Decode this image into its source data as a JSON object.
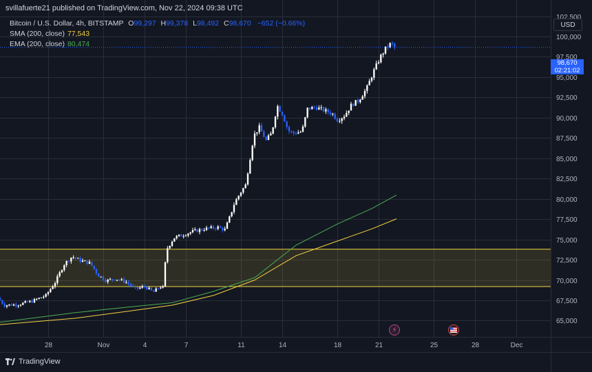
{
  "header": {
    "publisher_line": "svillafuerte21 published on TradingView.com, Nov 22, 2024 09:38 UTC"
  },
  "legend": {
    "symbol": "Bitcoin / U.S. Dollar, 4h, BITSTAMP",
    "open_label": "O",
    "open": "99,297",
    "high_label": "H",
    "high": "99,378",
    "low_label": "L",
    "low": "98,492",
    "close_label": "C",
    "close": "98,670",
    "change": "−652 (−0.66%)",
    "sma_label": "SMA (200, close)",
    "sma_value": "77,543",
    "ema_label": "EMA (200, close)",
    "ema_value": "80,474"
  },
  "currency": "USD",
  "price_tag": {
    "price": "98,670",
    "countdown": "02:21:02"
  },
  "footer": {
    "brand": "TradingView"
  },
  "colors": {
    "background": "#131722",
    "grid": "#2a2e39",
    "up": "#ffffff",
    "down": "#2962ff",
    "sma": "#f5d442",
    "ema": "#4caf50",
    "zone": "#f5d442",
    "axis_text": "#b2b5be"
  },
  "icons": {
    "marker_1": "lightning-icon",
    "marker_2": "us-flag-icon"
  },
  "chart_data": {
    "type": "candlestick",
    "y_range": [
      63000,
      104500
    ],
    "y_ticks": [
      65000,
      67500,
      70000,
      72500,
      75000,
      77500,
      80000,
      82500,
      85000,
      87500,
      90000,
      92500,
      95000,
      97500,
      100000,
      102500
    ],
    "x_range_days": [
      -1.5,
      38.5
    ],
    "x_tick_labels": [
      {
        "day": 2,
        "label": "28"
      },
      {
        "day": 6,
        "label": "Nov"
      },
      {
        "day": 9,
        "label": "4"
      },
      {
        "day": 12,
        "label": "7"
      },
      {
        "day": 16,
        "label": "11"
      },
      {
        "day": 19,
        "label": "14"
      },
      {
        "day": 23,
        "label": "18"
      },
      {
        "day": 26,
        "label": "21"
      },
      {
        "day": 30,
        "label": "25"
      },
      {
        "day": 33,
        "label": "28"
      },
      {
        "day": 36,
        "label": "Dec"
      }
    ],
    "y_tick_labels": [
      "65,000",
      "67,500",
      "70,000",
      "72,500",
      "75,000",
      "77,500",
      "80,000",
      "82,500",
      "85,000",
      "87,500",
      "90,000",
      "92,500",
      "95,000",
      "97,500",
      "100,000",
      "102,500"
    ],
    "support_zone": [
      69200,
      73800
    ],
    "last_price": 98670,
    "waypoints": [
      [
        -1.5,
        67800
      ],
      [
        -1.0,
        66900
      ],
      [
        0.0,
        67000
      ],
      [
        1.0,
        67400
      ],
      [
        2.0,
        68100
      ],
      [
        2.7,
        69800
      ],
      [
        3.3,
        71900
      ],
      [
        3.9,
        72900
      ],
      [
        4.5,
        72400
      ],
      [
        5.2,
        72100
      ],
      [
        5.8,
        70600
      ],
      [
        6.4,
        69900
      ],
      [
        7.0,
        70200
      ],
      [
        7.8,
        69800
      ],
      [
        8.5,
        68900
      ],
      [
        9.2,
        69200
      ],
      [
        9.8,
        68500
      ],
      [
        10.3,
        69200
      ],
      [
        10.6,
        69000
      ],
      [
        10.7,
        73600
      ],
      [
        11.3,
        75200
      ],
      [
        12.0,
        75600
      ],
      [
        12.7,
        76000
      ],
      [
        13.5,
        76300
      ],
      [
        14.5,
        76500
      ],
      [
        15.0,
        76200
      ],
      [
        15.3,
        77500
      ],
      [
        15.7,
        79500
      ],
      [
        16.1,
        80700
      ],
      [
        16.5,
        81700
      ],
      [
        16.8,
        84700
      ],
      [
        17.1,
        87800
      ],
      [
        17.5,
        88800
      ],
      [
        18.0,
        87200
      ],
      [
        18.4,
        88100
      ],
      [
        18.8,
        91500
      ],
      [
        19.2,
        90400
      ],
      [
        19.6,
        88400
      ],
      [
        20.0,
        88100
      ],
      [
        20.6,
        88300
      ],
      [
        21.0,
        91100
      ],
      [
        21.6,
        91300
      ],
      [
        22.2,
        90900
      ],
      [
        22.8,
        90500
      ],
      [
        23.2,
        89700
      ],
      [
        23.7,
        90300
      ],
      [
        24.2,
        91600
      ],
      [
        24.7,
        92100
      ],
      [
        25.3,
        93600
      ],
      [
        25.8,
        95700
      ],
      [
        26.3,
        97500
      ],
      [
        26.7,
        98600
      ],
      [
        27.1,
        99200
      ],
      [
        27.3,
        98670
      ]
    ],
    "series": [
      {
        "name": "SMA (200, close)",
        "points": [
          [
            -1.5,
            64500
          ],
          [
            4,
            65300
          ],
          [
            8,
            66200
          ],
          [
            11,
            66900
          ],
          [
            14,
            68100
          ],
          [
            17,
            70000
          ],
          [
            20,
            73000
          ],
          [
            23,
            74800
          ],
          [
            25.5,
            76300
          ],
          [
            27.3,
            77543
          ]
        ]
      },
      {
        "name": "EMA (200, close)",
        "points": [
          [
            -1.5,
            64800
          ],
          [
            4,
            66000
          ],
          [
            8,
            66700
          ],
          [
            11,
            67200
          ],
          [
            14,
            68600
          ],
          [
            17,
            70300
          ],
          [
            20,
            74300
          ],
          [
            23,
            76900
          ],
          [
            25.5,
            78800
          ],
          [
            27.3,
            80474
          ]
        ]
      }
    ]
  }
}
